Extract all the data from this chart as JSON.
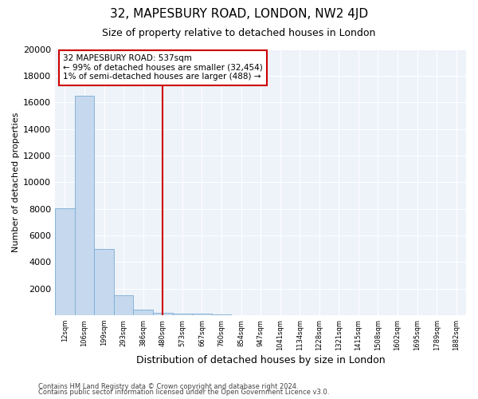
{
  "title": "32, MAPESBURY ROAD, LONDON, NW2 4JD",
  "subtitle": "Size of property relative to detached houses in London",
  "xlabel": "Distribution of detached houses by size in London",
  "ylabel": "Number of detached properties",
  "categories": [
    "12sqm",
    "106sqm",
    "199sqm",
    "293sqm",
    "386sqm",
    "480sqm",
    "573sqm",
    "667sqm",
    "760sqm",
    "854sqm",
    "947sqm",
    "1041sqm",
    "1134sqm",
    "1228sqm",
    "1321sqm",
    "1415sqm",
    "1508sqm",
    "1602sqm",
    "1695sqm",
    "1789sqm",
    "1882sqm"
  ],
  "values": [
    8050,
    16500,
    5000,
    1500,
    390,
    195,
    145,
    100,
    50,
    20,
    0,
    0,
    0,
    0,
    0,
    0,
    0,
    0,
    0,
    0,
    0
  ],
  "bar_color": "#c5d8ed",
  "bar_edge_color": "#7aaed6",
  "vline_color": "#cc0000",
  "annotation_text": "32 MAPESBURY ROAD: 537sqm\n← 99% of detached houses are smaller (32,454)\n1% of semi-detached houses are larger (488) →",
  "annotation_box_color": "#cc0000",
  "ylim": [
    0,
    20000
  ],
  "yticks": [
    0,
    2000,
    4000,
    6000,
    8000,
    10000,
    12000,
    14000,
    16000,
    18000,
    20000
  ],
  "background_color": "#eef2f9",
  "footer_line1": "Contains HM Land Registry data © Crown copyright and database right 2024.",
  "footer_line2": "Contains public sector information licensed under the Open Government Licence v3.0.",
  "title_fontsize": 11,
  "subtitle_fontsize": 9,
  "ylabel_fontsize": 8,
  "xlabel_fontsize": 9
}
